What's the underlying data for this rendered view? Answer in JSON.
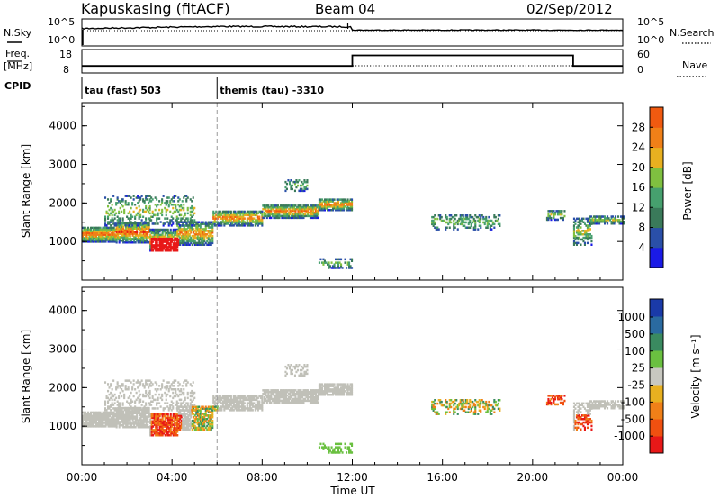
{
  "header": {
    "station": "Kapuskasing (fitACF)",
    "beam": "Beam 04",
    "date": "02/Sep/2012"
  },
  "strip_labels": {
    "nsky": "N.Sky",
    "nsearch": "N.Search",
    "freq_line1": "Freq.",
    "freq_line2": "[MHz]",
    "nave": "Nave",
    "cpid": "CPID",
    "pow_1e5_left": "10^5",
    "pow_1e0_left": "10^0",
    "pow_1e5_right": "10^5",
    "pow_1e0_right": "10^0",
    "freq_18": "18",
    "freq_8": "8",
    "nave_60": "60",
    "nave_0": "0"
  },
  "cpid_segments": [
    {
      "label": "tau (fast) 503",
      "start_hour": 0
    },
    {
      "label": "themis (tau) -3310",
      "start_hour": 6
    }
  ],
  "colors": {
    "power": [
      "#1a1ae6",
      "#2a4fa8",
      "#3a7a5a",
      "#46a06e",
      "#7fc040",
      "#e8b020",
      "#f08018",
      "#f05a10",
      "#e81818"
    ],
    "velocity": [
      "#1a3aa8",
      "#2a6aa0",
      "#3a8a60",
      "#6ac040",
      "#c8c8c0",
      "#e8b020",
      "#f08018",
      "#f05010",
      "#e81818"
    ],
    "ground_scatter": "#c0c0b8"
  },
  "chart_data": [
    {
      "type": "line",
      "name": "noise-panel",
      "ylabel_left": "N.Sky",
      "ylabel_right": "N.Search",
      "x_range_hours": [
        0,
        24
      ],
      "note_levels": "solid = N.Sky; dotted = N.Search"
    },
    {
      "type": "line",
      "name": "freq-nave-panel",
      "xlabel": "",
      "series": [
        {
          "name": "Freq. [MHz]",
          "x": [
            0,
            12,
            12,
            21.8,
            21.8,
            24
          ],
          "values": [
            11,
            11,
            15.5,
            15.5,
            11,
            11
          ]
        },
        {
          "name": "Nave",
          "x": [
            0,
            24
          ],
          "values": [
            1,
            1
          ]
        }
      ],
      "y_left_ticks": [
        "18",
        "8"
      ],
      "y_right_ticks": [
        "60",
        "0"
      ]
    },
    {
      "type": "heatmap",
      "name": "power",
      "ylabel": "Slant Range [km]",
      "yticks": [
        "1000",
        "2000",
        "3000",
        "4000"
      ],
      "ylim": [
        0,
        4600
      ],
      "xlim": [
        0,
        24
      ],
      "colorbar_label": "Power [dB]",
      "colorbar_ticks": [
        "4",
        "8",
        "12",
        "16",
        "20",
        "24",
        "28"
      ],
      "colorbar_range": [
        0,
        32
      ]
    },
    {
      "type": "heatmap",
      "name": "velocity",
      "ylabel": "Slant Range [km]",
      "xlabel": "Time UT",
      "yticks": [
        "1000",
        "2000",
        "3000",
        "4000"
      ],
      "ylim": [
        0,
        4600
      ],
      "xlim": [
        0,
        24
      ],
      "xticks": [
        "00:00",
        "04:00",
        "08:00",
        "12:00",
        "16:00",
        "20:00",
        "00:00"
      ],
      "colorbar_label": "Velocity [m s⁻¹]",
      "colorbar_ticks": [
        "1000",
        "500",
        "100",
        "25",
        "-25",
        "-100",
        "-500",
        "-1000"
      ]
    }
  ],
  "scatter_regions": [
    {
      "t0": 0.0,
      "t1": 1.5,
      "r0": 980,
      "r1": 1380,
      "core": 0.55,
      "dens": 0.9
    },
    {
      "t0": 1.5,
      "t1": 3.0,
      "r0": 960,
      "r1": 1500,
      "core": 0.6,
      "dens": 0.85
    },
    {
      "t0": 3.0,
      "t1": 4.2,
      "r0": 750,
      "r1": 1300,
      "core": 0.5,
      "dens": 0.85
    },
    {
      "t0": 4.2,
      "t1": 5.8,
      "r0": 900,
      "r1": 1500,
      "core": 0.45,
      "dens": 0.75
    },
    {
      "t0": 5.8,
      "t1": 8.0,
      "r0": 1400,
      "r1": 1800,
      "core": 0.5,
      "dens": 0.8
    },
    {
      "t0": 8.0,
      "t1": 10.5,
      "r0": 1600,
      "r1": 1950,
      "core": 0.5,
      "dens": 0.85
    },
    {
      "t0": 10.5,
      "t1": 12.0,
      "r0": 1800,
      "r1": 2100,
      "core": 0.5,
      "dens": 0.85
    },
    {
      "t0": 1.0,
      "t1": 5.0,
      "r0": 1400,
      "r1": 2200,
      "core": 0.2,
      "dens": 0.3
    },
    {
      "t0": 9.0,
      "t1": 10.0,
      "r0": 2300,
      "r1": 2600,
      "core": 0.1,
      "dens": 0.35
    },
    {
      "t0": 10.5,
      "t1": 12.0,
      "r0": 300,
      "r1": 550,
      "core": 0.1,
      "dens": 0.35
    },
    {
      "t0": 15.5,
      "t1": 18.5,
      "r0": 1300,
      "r1": 1700,
      "core": 0.1,
      "dens": 0.35
    },
    {
      "t0": 20.6,
      "t1": 21.4,
      "r0": 1550,
      "r1": 1800,
      "core": 0.2,
      "dens": 0.5
    },
    {
      "t0": 21.8,
      "t1": 22.6,
      "r0": 900,
      "r1": 1600,
      "core": 0.2,
      "dens": 0.5
    },
    {
      "t0": 22.5,
      "t1": 24.0,
      "r0": 1450,
      "r1": 1650,
      "core": 0.2,
      "dens": 0.7
    }
  ]
}
